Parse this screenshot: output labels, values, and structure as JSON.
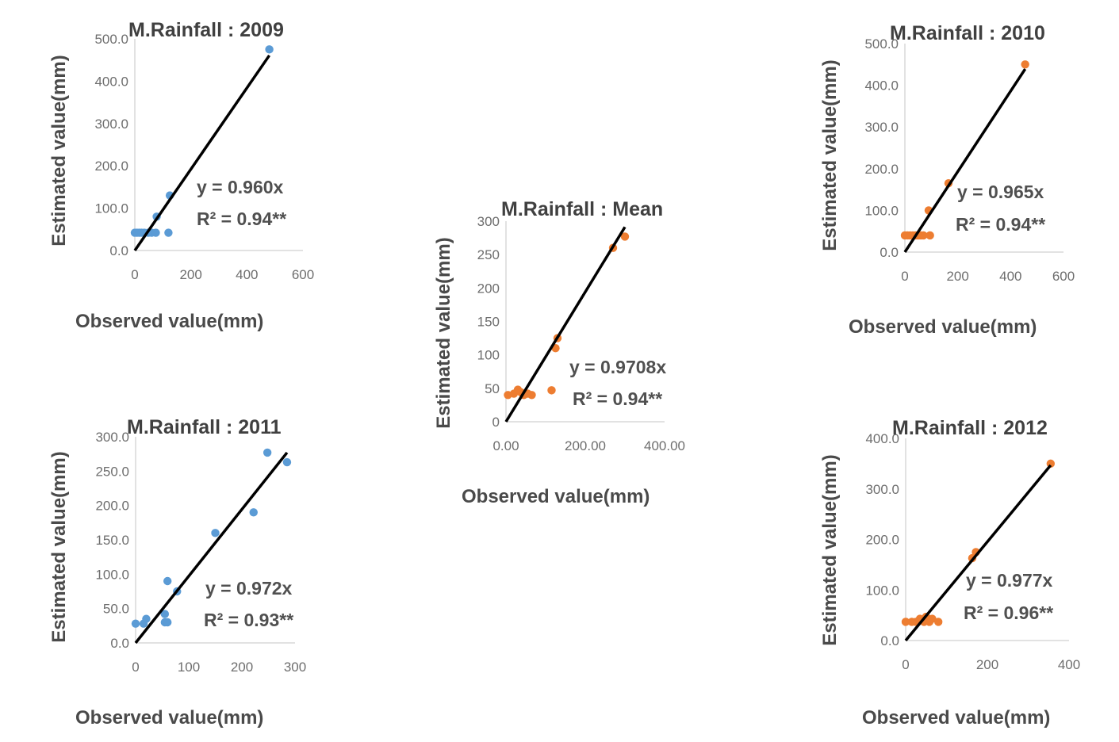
{
  "chart_data": [
    {
      "type": "scatter",
      "title": "M.Rainfall : 2009",
      "xlabel": "Observed   value(mm)",
      "ylabel": "Estimated value(mm)",
      "xlim": [
        0,
        600
      ],
      "ylim": [
        0,
        500
      ],
      "xticks": [
        "0",
        "200",
        "400",
        "600"
      ],
      "yticks": [
        "0.0",
        "100.0",
        "200.0",
        "300.0",
        "400.0",
        "500.0"
      ],
      "color": "#5b9bd5",
      "points": [
        [
          0,
          42
        ],
        [
          8,
          42
        ],
        [
          16,
          42
        ],
        [
          24,
          42
        ],
        [
          34,
          42
        ],
        [
          48,
          42
        ],
        [
          60,
          42
        ],
        [
          75,
          42
        ],
        [
          78,
          80
        ],
        [
          120,
          42
        ],
        [
          125,
          130
        ],
        [
          480,
          475
        ]
      ],
      "fit_slope": 0.96,
      "equation": "y = 0.960x",
      "r2": "R² = 0.94**"
    },
    {
      "type": "scatter",
      "title": "M.Rainfall : 2010",
      "xlabel": "Observed   value(mm)",
      "ylabel": "Estimated value(mm)",
      "xlim": [
        0,
        600
      ],
      "ylim": [
        0,
        500
      ],
      "xticks": [
        "0",
        "200",
        "400",
        "600"
      ],
      "yticks": [
        "0.0",
        "100.0",
        "200.0",
        "300.0",
        "400.0",
        "500.0"
      ],
      "color": "#ed7d31",
      "points": [
        [
          0,
          40
        ],
        [
          10,
          40
        ],
        [
          20,
          40
        ],
        [
          30,
          40
        ],
        [
          40,
          40
        ],
        [
          50,
          40
        ],
        [
          60,
          40
        ],
        [
          70,
          40
        ],
        [
          95,
          40
        ],
        [
          90,
          100
        ],
        [
          165,
          165
        ],
        [
          455,
          450
        ]
      ],
      "fit_slope": 0.965,
      "equation": "y = 0.965x",
      "r2": "R² = 0.94**"
    },
    {
      "type": "scatter",
      "title": "M.Rainfall : Mean",
      "xlabel": "Observed   value(mm)",
      "ylabel": "Estimated value(mm)",
      "xlim": [
        0,
        400
      ],
      "ylim": [
        0,
        300
      ],
      "xticks": [
        "0.00",
        "200.00",
        "400.00"
      ],
      "yticks": [
        "0",
        "50",
        "100",
        "150",
        "200",
        "250",
        "300"
      ],
      "color": "#ed7d31",
      "points": [
        [
          5,
          40
        ],
        [
          20,
          42
        ],
        [
          30,
          48
        ],
        [
          38,
          44
        ],
        [
          45,
          40
        ],
        [
          55,
          42
        ],
        [
          65,
          40
        ],
        [
          115,
          47
        ],
        [
          125,
          110
        ],
        [
          130,
          125
        ],
        [
          270,
          260
        ],
        [
          300,
          277
        ]
      ],
      "fit_slope": 0.9708,
      "equation": "y = 0.9708x",
      "r2": "R² = 0.94**"
    },
    {
      "type": "scatter",
      "title": "M.Rainfall : 2011",
      "xlabel": "Observed   value(mm)",
      "ylabel": "Estimated value(mm)",
      "xlim": [
        0,
        300
      ],
      "ylim": [
        0,
        300
      ],
      "xticks": [
        "0",
        "100",
        "200",
        "300"
      ],
      "yticks": [
        "0.0",
        "50.0",
        "100.0",
        "150.0",
        "200.0",
        "250.0",
        "300.0"
      ],
      "color": "#5b9bd5",
      "points": [
        [
          0,
          28
        ],
        [
          15,
          28
        ],
        [
          20,
          35
        ],
        [
          55,
          30
        ],
        [
          55,
          42
        ],
        [
          60,
          30
        ],
        [
          60,
          90
        ],
        [
          78,
          75
        ],
        [
          150,
          160
        ],
        [
          222,
          190
        ],
        [
          248,
          277
        ],
        [
          285,
          263
        ]
      ],
      "fit_slope": 0.972,
      "equation": "y = 0.972x",
      "r2": "R² = 0.93**"
    },
    {
      "type": "scatter",
      "title": "M.Rainfall : 2012",
      "xlabel": "Observed   value(mm)",
      "ylabel": "Estimated value(mm)",
      "xlim": [
        0,
        400
      ],
      "ylim": [
        0,
        400
      ],
      "xticks": [
        "0",
        "200",
        "400"
      ],
      "yticks": [
        "0.0",
        "100.0",
        "200.0",
        "300.0",
        "400.0"
      ],
      "color": "#ed7d31",
      "points": [
        [
          0,
          37
        ],
        [
          15,
          37
        ],
        [
          25,
          37
        ],
        [
          35,
          43
        ],
        [
          45,
          37
        ],
        [
          50,
          47
        ],
        [
          58,
          37
        ],
        [
          65,
          43
        ],
        [
          80,
          37
        ],
        [
          163,
          163
        ],
        [
          172,
          175
        ],
        [
          355,
          350
        ]
      ],
      "fit_slope": 0.977,
      "equation": "y = 0.977x",
      "r2": "R² = 0.96**"
    }
  ]
}
